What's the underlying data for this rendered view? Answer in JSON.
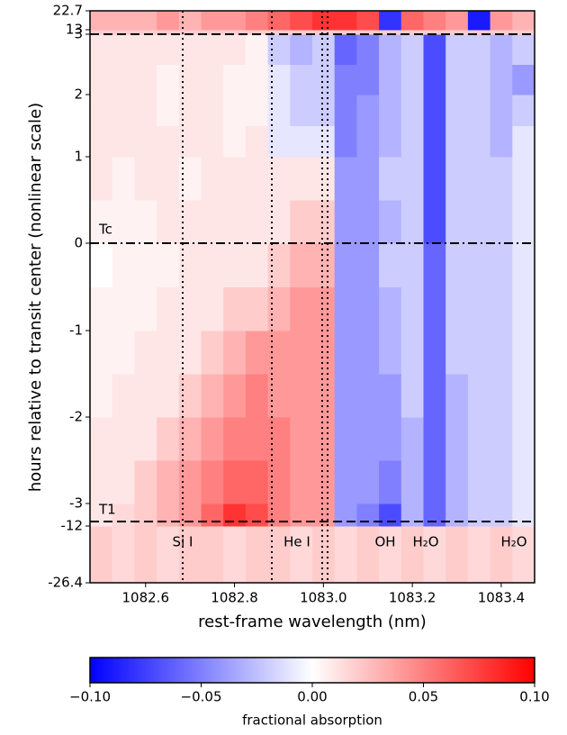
{
  "chart_data": {
    "type": "heatmap",
    "xlabel": "rest-frame wavelength (nm)",
    "ylabel": "hours relative to transit center (nonlinear scale)",
    "xlim": [
      1082.475,
      1083.475
    ],
    "xticks": [
      1082.6,
      1082.8,
      {
        "value": 1083,
        "label": "1083.0"
      },
      1083.2,
      1083.4
    ],
    "ylim": [
      -26.4,
      22.7
    ],
    "yticks": [
      -26.4,
      -12,
      -3,
      -2,
      -1,
      0,
      1,
      2,
      3,
      13,
      22.7
    ],
    "x_bins": [
      1082.475,
      1082.525,
      1082.575,
      1082.625,
      1082.675,
      1082.725,
      1082.775,
      1082.825,
      1082.875,
      1082.925,
      1082.975,
      1083.025,
      1083.075,
      1083.125,
      1083.175,
      1083.225,
      1083.275,
      1083.325,
      1083.375,
      1083.425,
      1083.475
    ],
    "y_bins": [
      -26.4,
      -12,
      -3,
      -2.5,
      -2,
      -1.5,
      -1,
      -0.5,
      0,
      0.5,
      1,
      1.5,
      2,
      2.5,
      3,
      13,
      22.7
    ],
    "z": [
      [
        0.02,
        0.015,
        0.02,
        0.015,
        0.02,
        0.02,
        0.015,
        0.02,
        0.02,
        0.015,
        0.02,
        0.015,
        0.02,
        0.015,
        0.02,
        0.015,
        0.02,
        0.015,
        0.02,
        0.015
      ],
      [
        0.01,
        0.015,
        0.02,
        0.03,
        0.04,
        0.06,
        0.08,
        0.07,
        0.05,
        0.04,
        0.04,
        -0.04,
        -0.05,
        -0.07,
        -0.03,
        -0.06,
        -0.03,
        -0.02,
        -0.02,
        -0.01
      ],
      [
        0.01,
        0.01,
        0.02,
        0.03,
        0.04,
        0.05,
        0.06,
        0.06,
        0.05,
        0.04,
        0.04,
        -0.04,
        -0.04,
        -0.05,
        -0.03,
        -0.06,
        -0.03,
        -0.02,
        -0.02,
        -0.01
      ],
      [
        0.01,
        0.01,
        0.01,
        0.02,
        0.03,
        0.04,
        0.05,
        0.05,
        0.05,
        0.04,
        0.04,
        -0.04,
        -0.04,
        -0.04,
        -0.03,
        -0.06,
        -0.03,
        -0.02,
        -0.02,
        -0.01
      ],
      [
        0.005,
        0.01,
        0.01,
        0.01,
        0.02,
        0.03,
        0.04,
        0.05,
        0.04,
        0.04,
        0.04,
        -0.04,
        -0.04,
        -0.04,
        -0.02,
        -0.06,
        -0.03,
        -0.02,
        -0.02,
        -0.01
      ],
      [
        0.005,
        0.005,
        0.01,
        0.01,
        0.01,
        0.02,
        0.03,
        0.04,
        0.04,
        0.04,
        0.04,
        -0.04,
        -0.04,
        -0.03,
        -0.02,
        -0.06,
        -0.02,
        -0.02,
        -0.02,
        -0.01
      ],
      [
        0.005,
        0.005,
        0.005,
        0.01,
        0.01,
        0.01,
        0.02,
        0.02,
        0.03,
        0.04,
        0.04,
        -0.04,
        -0.04,
        -0.03,
        -0.02,
        -0.06,
        -0.02,
        -0.02,
        -0.02,
        -0.01
      ],
      [
        0,
        0.005,
        0.005,
        0.005,
        0.01,
        0.01,
        0.01,
        0.01,
        0.02,
        0.03,
        0.03,
        -0.04,
        -0.04,
        -0.02,
        -0.02,
        -0.06,
        -0.02,
        -0.02,
        -0.02,
        -0.01
      ],
      [
        0.005,
        0.005,
        0.005,
        0.01,
        0.01,
        0.01,
        0.01,
        0.01,
        0.01,
        0.02,
        0.02,
        -0.04,
        -0.04,
        -0.03,
        -0.02,
        -0.07,
        -0.02,
        -0.02,
        -0.02,
        -0.01
      ],
      [
        0.01,
        0.005,
        0.01,
        0.01,
        0.005,
        0.01,
        0.01,
        0.01,
        0.01,
        0.01,
        0.01,
        -0.04,
        -0.04,
        -0.02,
        -0.02,
        -0.07,
        -0.02,
        -0.02,
        -0.02,
        -0.01
      ],
      [
        0.01,
        0.01,
        0.01,
        0.01,
        0.01,
        0.01,
        0.005,
        0.01,
        -0.01,
        -0.01,
        -0.01,
        -0.05,
        -0.04,
        -0.03,
        -0.02,
        -0.07,
        -0.02,
        -0.02,
        -0.03,
        -0.01
      ],
      [
        0.01,
        0.01,
        0.01,
        0.005,
        0.01,
        0.01,
        0.005,
        0.005,
        -0.01,
        -0.02,
        -0.02,
        -0.05,
        -0.04,
        -0.03,
        -0.02,
        -0.07,
        -0.02,
        -0.02,
        -0.03,
        -0.02
      ],
      [
        0.01,
        0.01,
        0.01,
        0.005,
        0.01,
        0.01,
        0.005,
        0.005,
        -0.01,
        -0.02,
        -0.02,
        -0.05,
        -0.05,
        -0.03,
        -0.02,
        -0.07,
        -0.02,
        -0.02,
        -0.03,
        -0.04
      ],
      [
        0.01,
        0.01,
        0.01,
        0.01,
        0.01,
        0.01,
        0.01,
        0.005,
        -0.02,
        -0.03,
        -0.02,
        -0.06,
        -0.05,
        -0.03,
        -0.02,
        -0.07,
        -0.02,
        -0.02,
        -0.03,
        -0.02
      ],
      [
        0.02,
        0.02,
        0.02,
        0.02,
        0.02,
        0.02,
        0.02,
        0.02,
        0.02,
        0.02,
        0.02,
        0.02,
        0.02,
        0.02,
        0.02,
        0.02,
        0.02,
        0.02,
        0.02,
        0.02
      ],
      [
        0.03,
        0.03,
        0.03,
        0.04,
        0.03,
        0.04,
        0.04,
        0.05,
        0.06,
        0.07,
        0.08,
        0.08,
        0.07,
        -0.08,
        0.06,
        0.05,
        0.04,
        -0.09,
        0.04,
        0.03
      ]
    ],
    "annotations": [
      "Si I",
      "He I",
      "OH",
      "H₂O",
      "H₂O",
      "Tc",
      "T1"
    ],
    "colorbar": {
      "label": "fractional absorption",
      "clim": [
        -0.1,
        0.1
      ],
      "ticks": [
        {
          "value": -0.1,
          "label": "−0.10"
        },
        {
          "value": -0.05,
          "label": "−0.05"
        },
        {
          "value": 0,
          "label": "0.00"
        },
        {
          "value": 0.05,
          "label": "0.05"
        },
        {
          "value": 0.1,
          "label": "0.10"
        }
      ]
    }
  }
}
